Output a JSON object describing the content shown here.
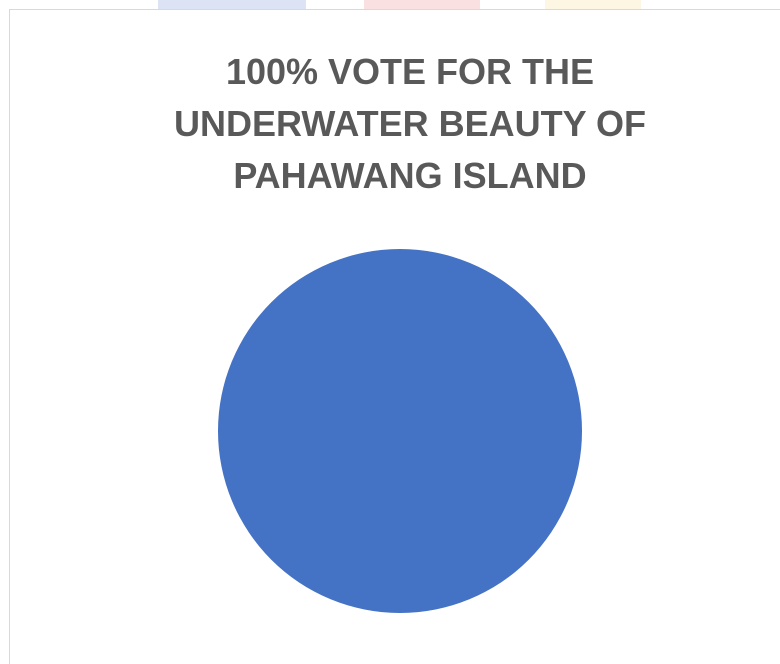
{
  "chart_data": {
    "type": "pie",
    "title": "100% VOTE FOR THE\nUNDERWATER BEAUTY OF\nPAHAWANG ISLAND",
    "categories": [
      ""
    ],
    "values": [
      100
    ],
    "colors": [
      "#4472c4"
    ],
    "legend": "none"
  },
  "colors": {
    "title": "#595959",
    "frame_border": "#d9d9d9"
  }
}
